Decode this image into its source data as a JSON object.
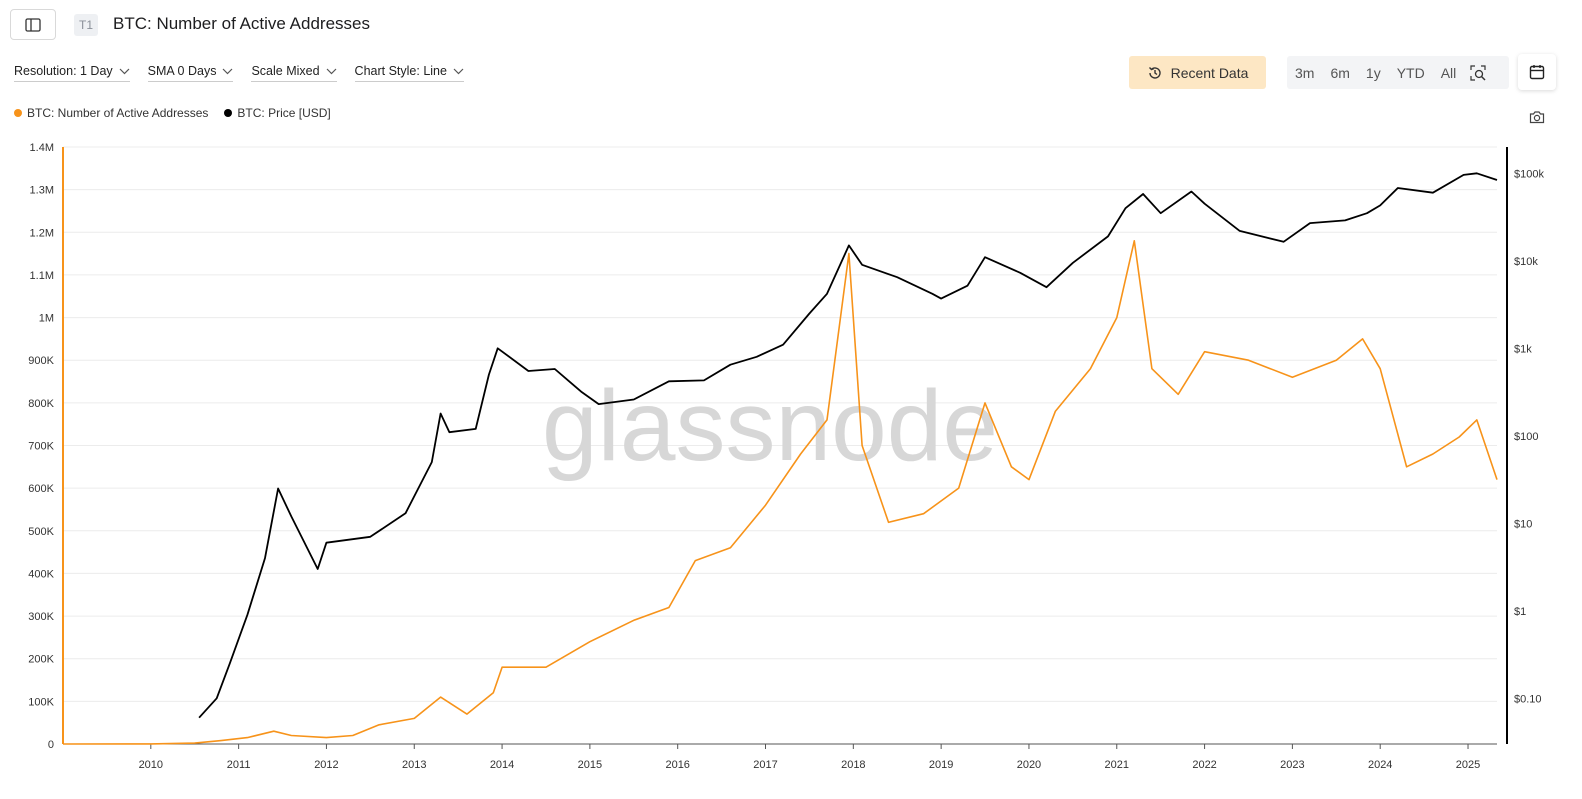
{
  "header": {
    "title": "BTC: Number of Active Addresses",
    "tier_badge": "T1"
  },
  "controls": {
    "resolution": "Resolution: 1 Day",
    "sma": "SMA 0 Days",
    "scale": "Scale Mixed",
    "chart_style": "Chart Style: Line"
  },
  "toolbar": {
    "recent_data": "Recent Data",
    "ranges": [
      "3m",
      "6m",
      "1y",
      "YTD",
      "All"
    ]
  },
  "legend": [
    {
      "label": "BTC: Number of Active Addresses",
      "color": "#f7931a"
    },
    {
      "label": "BTC: Price [USD]",
      "color": "#000000"
    }
  ],
  "watermark": "glassnode",
  "chart_data": {
    "type": "line",
    "x_ticks": [
      "2010",
      "2011",
      "2012",
      "2013",
      "2014",
      "2015",
      "2016",
      "2017",
      "2018",
      "2019",
      "2020",
      "2021",
      "2022",
      "2023",
      "2024",
      "2025"
    ],
    "xlim": [
      2009.0,
      2025.33
    ],
    "left_axis": {
      "ticks": [
        "0",
        "100K",
        "200K",
        "300K",
        "400K",
        "500K",
        "600K",
        "700K",
        "800K",
        "900K",
        "1M",
        "1.1M",
        "1.2M",
        "1.3M",
        "1.4M"
      ],
      "ylim": [
        0,
        1400000
      ]
    },
    "right_axis": {
      "scale": "log",
      "ticks": [
        "$0.10",
        "$1",
        "$10",
        "$100",
        "$1k",
        "$10k",
        "$100k"
      ],
      "ylim": [
        0.03,
        200000
      ]
    },
    "grid": true,
    "legend_position": "top-left",
    "series": [
      {
        "name": "BTC: Number of Active Addresses",
        "color": "#f7931a",
        "axis": "left",
        "points": [
          [
            2009.0,
            0
          ],
          [
            2010.0,
            300
          ],
          [
            2010.5,
            2000
          ],
          [
            2010.8,
            8000
          ],
          [
            2011.1,
            15000
          ],
          [
            2011.4,
            30000
          ],
          [
            2011.6,
            20000
          ],
          [
            2012.0,
            15000
          ],
          [
            2012.3,
            20000
          ],
          [
            2012.6,
            45000
          ],
          [
            2013.0,
            60000
          ],
          [
            2013.3,
            110000
          ],
          [
            2013.6,
            70000
          ],
          [
            2013.9,
            120000
          ],
          [
            2014.0,
            180000
          ],
          [
            2014.5,
            180000
          ],
          [
            2015.0,
            240000
          ],
          [
            2015.5,
            290000
          ],
          [
            2015.9,
            320000
          ],
          [
            2016.2,
            430000
          ],
          [
            2016.6,
            460000
          ],
          [
            2017.0,
            560000
          ],
          [
            2017.4,
            680000
          ],
          [
            2017.7,
            760000
          ],
          [
            2017.95,
            1150000
          ],
          [
            2018.1,
            700000
          ],
          [
            2018.4,
            520000
          ],
          [
            2018.8,
            540000
          ],
          [
            2019.2,
            600000
          ],
          [
            2019.5,
            800000
          ],
          [
            2019.8,
            650000
          ],
          [
            2020.0,
            620000
          ],
          [
            2020.3,
            780000
          ],
          [
            2020.7,
            880000
          ],
          [
            2021.0,
            1000000
          ],
          [
            2021.2,
            1180000
          ],
          [
            2021.4,
            880000
          ],
          [
            2021.7,
            820000
          ],
          [
            2022.0,
            920000
          ],
          [
            2022.5,
            900000
          ],
          [
            2023.0,
            860000
          ],
          [
            2023.5,
            900000
          ],
          [
            2023.8,
            950000
          ],
          [
            2024.0,
            880000
          ],
          [
            2024.3,
            650000
          ],
          [
            2024.6,
            680000
          ],
          [
            2024.9,
            720000
          ],
          [
            2025.1,
            760000
          ],
          [
            2025.33,
            620000
          ]
        ]
      },
      {
        "name": "BTC: Price [USD]",
        "color": "#000000",
        "axis": "right",
        "points": [
          [
            2010.55,
            0.06
          ],
          [
            2010.75,
            0.1
          ],
          [
            2010.9,
            0.25
          ],
          [
            2011.1,
            0.9
          ],
          [
            2011.3,
            4
          ],
          [
            2011.45,
            25
          ],
          [
            2011.6,
            12
          ],
          [
            2011.9,
            3
          ],
          [
            2012.0,
            6
          ],
          [
            2012.5,
            7
          ],
          [
            2012.9,
            13
          ],
          [
            2013.2,
            50
          ],
          [
            2013.3,
            180
          ],
          [
            2013.4,
            110
          ],
          [
            2013.7,
            120
          ],
          [
            2013.85,
            500
          ],
          [
            2013.95,
            1000
          ],
          [
            2014.3,
            550
          ],
          [
            2014.6,
            580
          ],
          [
            2014.9,
            320
          ],
          [
            2015.1,
            230
          ],
          [
            2015.5,
            260
          ],
          [
            2015.9,
            420
          ],
          [
            2016.3,
            430
          ],
          [
            2016.6,
            650
          ],
          [
            2016.9,
            800
          ],
          [
            2017.2,
            1100
          ],
          [
            2017.5,
            2500
          ],
          [
            2017.7,
            4200
          ],
          [
            2017.95,
            15000
          ],
          [
            2018.1,
            9000
          ],
          [
            2018.5,
            6500
          ],
          [
            2018.9,
            4200
          ],
          [
            2019.0,
            3700
          ],
          [
            2019.3,
            5200
          ],
          [
            2019.5,
            11000
          ],
          [
            2019.9,
            7300
          ],
          [
            2020.2,
            5000
          ],
          [
            2020.5,
            9500
          ],
          [
            2020.9,
            19000
          ],
          [
            2021.1,
            40000
          ],
          [
            2021.3,
            58000
          ],
          [
            2021.5,
            35000
          ],
          [
            2021.85,
            62000
          ],
          [
            2022.0,
            45000
          ],
          [
            2022.4,
            22000
          ],
          [
            2022.9,
            16500
          ],
          [
            2023.2,
            27000
          ],
          [
            2023.6,
            29000
          ],
          [
            2023.85,
            35000
          ],
          [
            2024.0,
            43000
          ],
          [
            2024.2,
            68000
          ],
          [
            2024.6,
            60000
          ],
          [
            2024.95,
            96000
          ],
          [
            2025.1,
            100000
          ],
          [
            2025.33,
            84000
          ]
        ]
      }
    ]
  }
}
